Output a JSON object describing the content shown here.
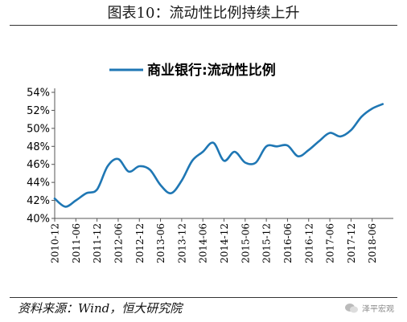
{
  "figure": {
    "title": "图表10：流动性比例持续上升",
    "source": "资料来源：Wind，恒大研究院",
    "watermark": "泽平宏观"
  },
  "colors": {
    "series": "#1f77b4",
    "axis": "#555555",
    "text": "#000000"
  },
  "chart_data": {
    "type": "line",
    "title": "",
    "xlabel": "",
    "ylabel": "",
    "ylim": [
      40,
      54
    ],
    "yticks": [
      "40%",
      "42%",
      "44%",
      "46%",
      "48%",
      "50%",
      "52%",
      "54%"
    ],
    "xticks": [
      "2010-12",
      "2011-06",
      "2011-12",
      "2012-06",
      "2012-12",
      "2013-06",
      "2013-12",
      "2014-06",
      "2014-12",
      "2015-06",
      "2015-12",
      "2016-06",
      "2016-12",
      "2017-06",
      "2017-12",
      "2018-06"
    ],
    "legend": "top",
    "grid": false,
    "series": [
      {
        "name": "商业银行:流动性比例",
        "x": [
          "2010-12",
          "2011-03",
          "2011-06",
          "2011-09",
          "2011-12",
          "2012-03",
          "2012-06",
          "2012-09",
          "2012-12",
          "2013-03",
          "2013-06",
          "2013-09",
          "2013-12",
          "2014-03",
          "2014-06",
          "2014-09",
          "2014-12",
          "2015-03",
          "2015-06",
          "2015-09",
          "2015-12",
          "2016-03",
          "2016-06",
          "2016-09",
          "2016-12",
          "2017-03",
          "2017-06",
          "2017-09",
          "2017-12",
          "2018-03",
          "2018-06",
          "2018-09"
        ],
        "values": [
          42.2,
          41.3,
          42.0,
          42.8,
          43.2,
          45.8,
          46.6,
          45.2,
          45.8,
          45.4,
          43.7,
          42.8,
          44.2,
          46.4,
          47.4,
          48.4,
          46.4,
          47.4,
          46.2,
          46.2,
          48.0,
          48.0,
          48.1,
          46.9,
          47.6,
          48.6,
          49.5,
          49.1,
          49.8,
          51.3,
          52.2,
          52.7
        ]
      }
    ]
  }
}
